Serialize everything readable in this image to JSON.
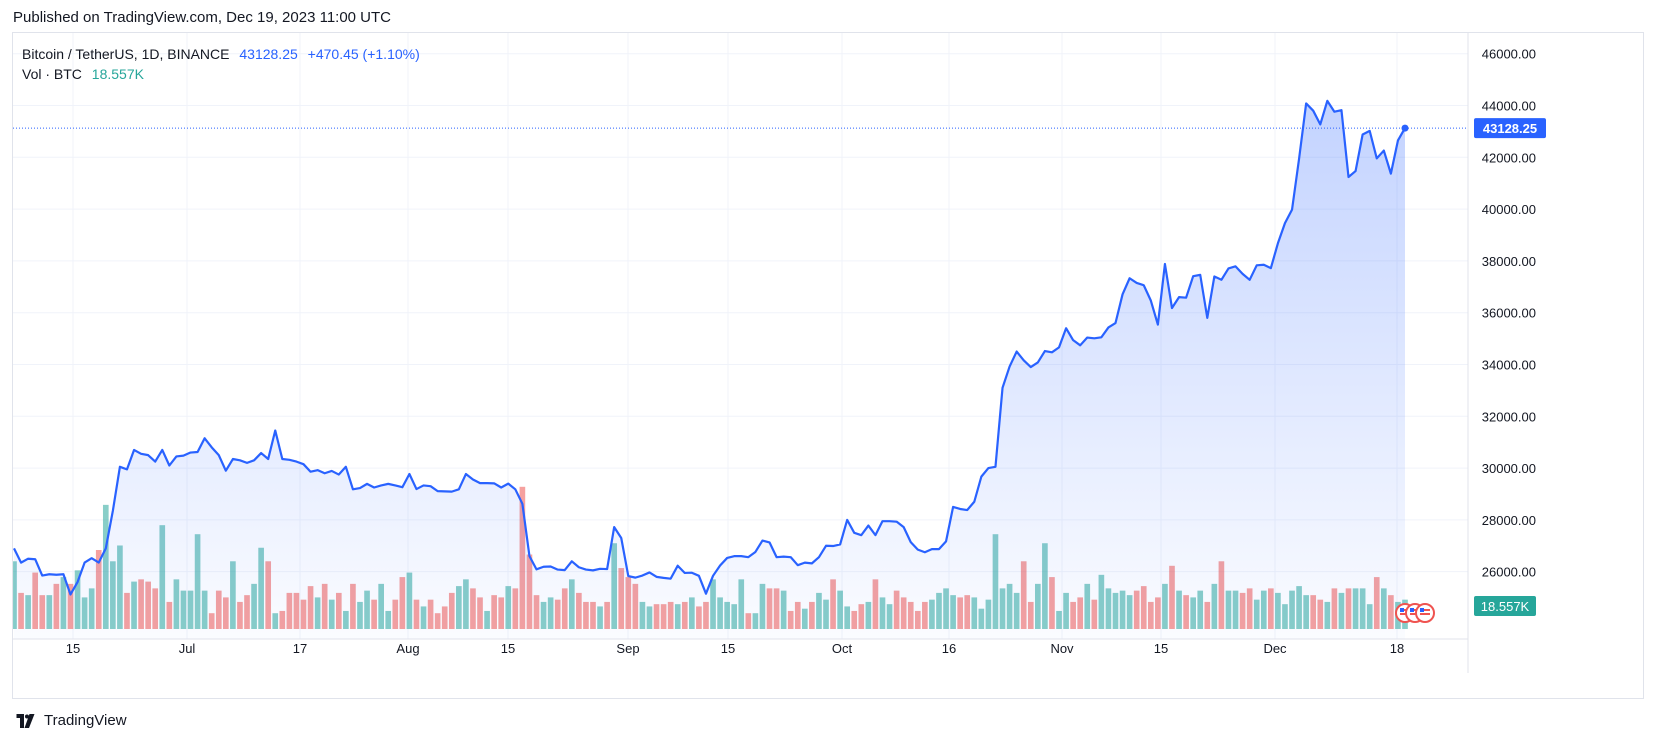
{
  "header": {
    "published": "Published on TradingView.com, Dec 19, 2023 11:00 UTC"
  },
  "legend": {
    "symbol": "Bitcoin / TetherUS, 1D, BINANCE",
    "last": "43128.25",
    "change": "+470.45 (+1.10%)",
    "vol_label": "Vol · BTC",
    "vol_value": "18.557K"
  },
  "footer": {
    "brand": "TradingView"
  },
  "colors": {
    "line": "#2962ff",
    "fill": "#2962ff",
    "up": "#26a69a",
    "down": "#ef5350",
    "grid": "#f0f3fa",
    "axis_text": "#131722"
  },
  "chart_data": {
    "type": "area",
    "title": "Bitcoin / TetherUS, 1D, BINANCE",
    "ylabel": "",
    "xlabel": "",
    "ylim": [
      23400,
      46800
    ],
    "y_ticks": [
      "46000.00",
      "44000.00",
      "42000.00",
      "40000.00",
      "38000.00",
      "36000.00",
      "34000.00",
      "32000.00",
      "30000.00",
      "28000.00",
      "26000.00"
    ],
    "x_ticks": [
      "15",
      "Jul",
      "17",
      "Aug",
      "15",
      "Sep",
      "15",
      "Oct",
      "16",
      "Nov",
      "15",
      "Dec",
      "18"
    ],
    "price_label": "43128.25",
    "vol_label": "18.557K",
    "series": [
      {
        "name": "Bitcoin / TetherUS",
        "values": [
          26900,
          26350,
          26500,
          26480,
          25850,
          25900,
          25880,
          25900,
          25120,
          25600,
          26350,
          26520,
          26350,
          26900,
          28350,
          30050,
          29950,
          30700,
          30550,
          30500,
          30250,
          30700,
          30100,
          30450,
          30480,
          30600,
          30620,
          31150,
          30800,
          30500,
          29900,
          30350,
          30300,
          30200,
          30300,
          30580,
          30350,
          31450,
          30350,
          30320,
          30250,
          30150,
          29860,
          29920,
          29800,
          29890,
          29750,
          30050,
          29180,
          29230,
          29390,
          29250,
          29330,
          29390,
          29330,
          29260,
          29770,
          29190,
          29330,
          29300,
          29110,
          29100,
          29090,
          29180,
          29770,
          29560,
          29420,
          29420,
          29410,
          29250,
          29400,
          29180,
          28620,
          26600,
          26090,
          26190,
          26200,
          26080,
          26060,
          26400,
          26170,
          26080,
          26050,
          26110,
          26100,
          27720,
          27300,
          25830,
          25770,
          25850,
          25970,
          25800,
          25760,
          25730,
          26230,
          25950,
          25960,
          25840,
          25150,
          25840,
          26240,
          26530,
          26600,
          26600,
          26560,
          26760,
          27200,
          27130,
          26560,
          26580,
          26560,
          26250,
          26350,
          26320,
          26560,
          27000,
          26990,
          27050,
          28000,
          27500,
          27410,
          27780,
          27410,
          27950,
          27950,
          27930,
          27720,
          27140,
          26850,
          26750,
          26870,
          26870,
          27170,
          28500,
          28420,
          28380,
          28700,
          29670,
          30000,
          30050,
          33100,
          33920,
          34500,
          34160,
          33900,
          34080,
          34520,
          34470,
          34660,
          35400,
          34940,
          34740,
          35040,
          35010,
          35050,
          35430,
          35600,
          36710,
          37330,
          37150,
          37060,
          36470,
          35540,
          37880,
          36180,
          36600,
          36580,
          37410,
          37460,
          35800,
          37400,
          37270,
          37710,
          37790,
          37500,
          37270,
          37830,
          37850,
          37720,
          38680,
          39460,
          39980,
          41950,
          44080,
          43800,
          43270,
          44180,
          43760,
          43820,
          41240,
          41470,
          42880,
          43020,
          41960,
          42260,
          41370,
          42650,
          43128.25
        ]
      },
      {
        "name": "Vol · BTC",
        "values": [
          30,
          16,
          15,
          25,
          15,
          15,
          20,
          23,
          20,
          26,
          14,
          18,
          35,
          55,
          30,
          37,
          16,
          21,
          22,
          21,
          18,
          46,
          12,
          22,
          17,
          17,
          42,
          17,
          7,
          17,
          14,
          30,
          12,
          15,
          20,
          36,
          30,
          7,
          8,
          16,
          16,
          13,
          19,
          14,
          20,
          13,
          16,
          8,
          20,
          12,
          17,
          13,
          20,
          8,
          13,
          23,
          25,
          13,
          10,
          13,
          7,
          10,
          16,
          19,
          22,
          18,
          14,
          8,
          15,
          14,
          19,
          18,
          63,
          33,
          15,
          12,
          14,
          13,
          18,
          22,
          16,
          12,
          12,
          10,
          12,
          38,
          27,
          23,
          20,
          12,
          10,
          11,
          11,
          12,
          11,
          12,
          14,
          10,
          12,
          22,
          14,
          12,
          11,
          22,
          7,
          7,
          20,
          18,
          18,
          17,
          8,
          12,
          9,
          12,
          16,
          13,
          22,
          17,
          10,
          8,
          11,
          12,
          22,
          14,
          11,
          17,
          14,
          12,
          8,
          12,
          13,
          16,
          18,
          15,
          14,
          15,
          14,
          9,
          13,
          42,
          18,
          20,
          16,
          30,
          12,
          20,
          38,
          23,
          8,
          16,
          12,
          14,
          20,
          13,
          24,
          18,
          16,
          17,
          15,
          17,
          19,
          12,
          14,
          20,
          28,
          17,
          15,
          14,
          17,
          12,
          20,
          30,
          17,
          17,
          16,
          18,
          13,
          17,
          18,
          16,
          11,
          17,
          19,
          15,
          15,
          13,
          12,
          18,
          16,
          18,
          18,
          18,
          11,
          23,
          18,
          15,
          12,
          13,
          8,
          17,
          12,
          7,
          13,
          10,
          8,
          19
        ]
      }
    ]
  }
}
